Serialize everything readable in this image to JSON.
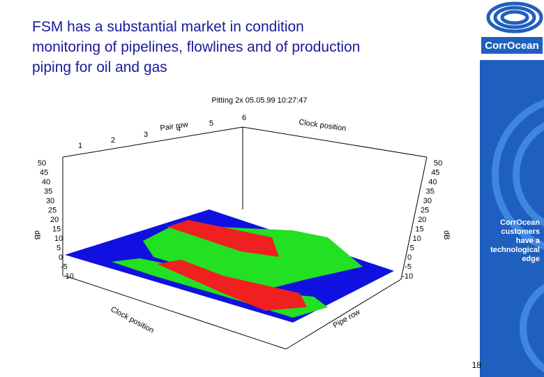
{
  "header": {
    "title_lines": [
      "FSM has a substantial market in condition",
      "monitoring of pipelines, flowlines and of production",
      "piping for oil and gas"
    ]
  },
  "plot": {
    "title": "Pitting  2x   05.05.99 10:27:47",
    "axis_labels": {
      "top_left": "Pair row",
      "top_right": "Clock position",
      "bottom_left": "Clock position",
      "bottom_right": "Pipe row",
      "left": "dB",
      "right": "dB"
    },
    "top_ticks": [
      "1",
      "2",
      "3",
      "4",
      "5",
      "6"
    ],
    "left_ticks": [
      "50",
      "45",
      "40",
      "35",
      "30",
      "25",
      "20",
      "15",
      "10",
      "5",
      "0",
      "-5",
      "-10"
    ],
    "right_ticks": [
      "50",
      "45",
      "40",
      "35",
      "30",
      "25",
      "20",
      "15",
      "10",
      "5",
      "0",
      "-5",
      "-10"
    ]
  },
  "sidebar": {
    "brand": "CorrOcean",
    "tagline": [
      "CorrOcean",
      "customers",
      "have a",
      "technological",
      "edge"
    ]
  },
  "footer": {
    "page": "18"
  }
}
